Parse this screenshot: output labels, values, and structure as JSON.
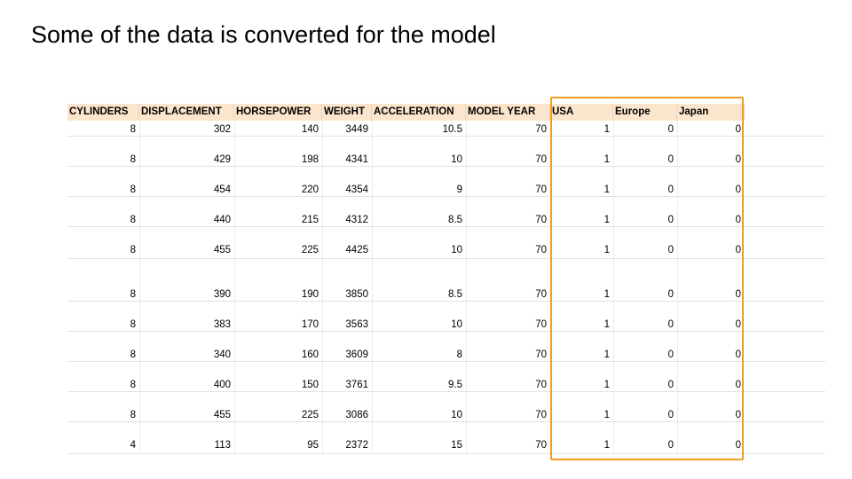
{
  "slide": {
    "title": "Some of the data is converted for the model"
  },
  "table": {
    "columns": [
      "CYLINDERS",
      "DISPLACEMENT",
      "HORSEPOWER",
      "WEIGHT",
      "ACCELERATION",
      "MODEL YEAR",
      "USA",
      "Europe",
      "Japan"
    ],
    "rows": [
      [
        "8",
        "302",
        "140",
        "3449",
        "10.5",
        "70",
        "1",
        "0",
        "0"
      ],
      [
        "8",
        "429",
        "198",
        "4341",
        "10",
        "70",
        "1",
        "0",
        "0"
      ],
      [
        "8",
        "454",
        "220",
        "4354",
        "9",
        "70",
        "1",
        "0",
        "0"
      ],
      [
        "8",
        "440",
        "215",
        "4312",
        "8.5",
        "70",
        "1",
        "0",
        "0"
      ],
      [
        "8",
        "455",
        "225",
        "4425",
        "10",
        "70",
        "1",
        "0",
        "0"
      ],
      [
        "8",
        "390",
        "190",
        "3850",
        "8.5",
        "70",
        "1",
        "0",
        "0"
      ],
      [
        "8",
        "383",
        "170",
        "3563",
        "10",
        "70",
        "1",
        "0",
        "0"
      ],
      [
        "8",
        "340",
        "160",
        "3609",
        "8",
        "70",
        "1",
        "0",
        "0"
      ],
      [
        "8",
        "400",
        "150",
        "3761",
        "9.5",
        "70",
        "1",
        "0",
        "0"
      ],
      [
        "8",
        "455",
        "225",
        "3086",
        "10",
        "70",
        "1",
        "0",
        "0"
      ],
      [
        "4",
        "113",
        "95",
        "2372",
        "15",
        "70",
        "1",
        "0",
        "0"
      ]
    ]
  },
  "colors": {
    "header_background": "#fce5cd",
    "highlight_border": "#f29f1f"
  }
}
